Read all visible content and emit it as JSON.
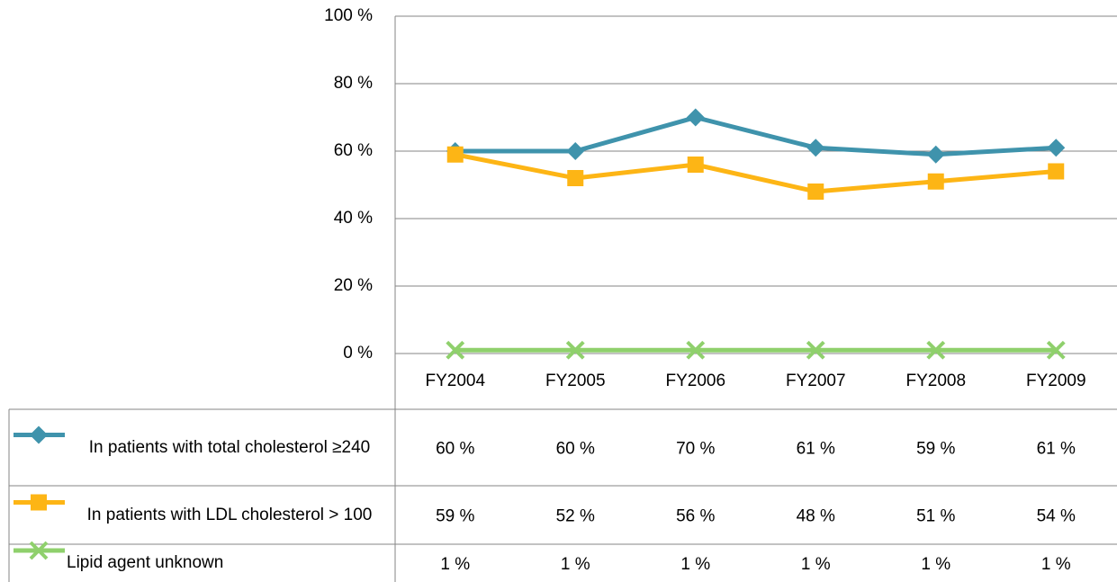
{
  "chart_data": {
    "type": "line",
    "categories": [
      "FY2004",
      "FY2005",
      "FY2006",
      "FY2007",
      "FY2008",
      "FY2009"
    ],
    "series": [
      {
        "name": "In patients with total cholesterol ≥240",
        "color": "#3f93ac",
        "marker": "diamond",
        "values": [
          60,
          60,
          70,
          61,
          59,
          61
        ],
        "value_labels": [
          "60 %",
          "60 %",
          "70 %",
          "61 %",
          "59 %",
          "61 %"
        ]
      },
      {
        "name": "In patients with LDL cholesterol > 100",
        "color": "#fdb515",
        "marker": "square",
        "values": [
          59,
          52,
          56,
          48,
          51,
          54
        ],
        "value_labels": [
          "59 %",
          "52 %",
          "56 %",
          "48 %",
          "51 %",
          "54 %"
        ]
      },
      {
        "name": "Lipid agent unknown",
        "color": "#8fd06c",
        "marker": "x",
        "values": [
          1,
          1,
          1,
          1,
          1,
          1
        ],
        "value_labels": [
          "1 %",
          "1 %",
          "1 %",
          "1 %",
          "1 %",
          "1 %"
        ]
      }
    ],
    "ylim": [
      0,
      100
    ],
    "yticks": [
      {
        "value": 0,
        "label": "0 %"
      },
      {
        "value": 20,
        "label": "20 %"
      },
      {
        "value": 40,
        "label": "40 %"
      },
      {
        "value": 60,
        "label": "60 %"
      },
      {
        "value": 80,
        "label": "80 %"
      },
      {
        "value": 100,
        "label": "100 %"
      }
    ],
    "grid": true
  }
}
